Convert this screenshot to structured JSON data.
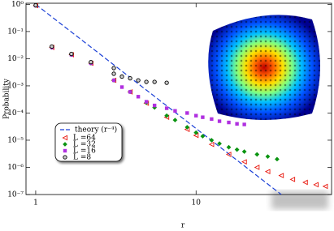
{
  "chart_data": {
    "type": "scatter",
    "xlabel": "r",
    "ylabel": "Probability",
    "xscale": "log",
    "yscale": "log",
    "legend": "lower left",
    "xlim": [
      0.87,
      70
    ],
    "ylim": [
      1e-07,
      1.1
    ],
    "xticks": [
      1,
      10
    ],
    "yticks": [
      {
        "value": 1e-07,
        "label": "10⁻⁷"
      },
      {
        "value": 1e-06,
        "label": "10⁻⁶"
      },
      {
        "value": 1e-05,
        "label": "10⁻⁵"
      },
      {
        "value": 0.0001,
        "label": "10⁻⁴"
      },
      {
        "value": 0.001,
        "label": "10⁻³"
      },
      {
        "value": 0.01,
        "label": "10⁻²"
      },
      {
        "value": 0.1,
        "label": "10⁻¹"
      },
      {
        "value": 1,
        "label": "10⁰"
      }
    ],
    "theory": {
      "name": "theory (r⁻⁴)",
      "color": "#1a3fd6",
      "x": [
        1,
        34
      ],
      "values": [
        1,
        1e-07
      ]
    },
    "series": [
      {
        "name": "L =64",
        "color": "#e8150b",
        "marker": "triangle-left",
        "x": [
          1,
          1.26,
          1.67,
          2.21,
          3.07,
          3.88,
          4.9,
          6.56,
          8.8,
          10,
          12.5,
          16,
          20,
          24,
          28,
          34,
          40,
          48,
          56,
          64
        ],
        "values": [
          0.9,
          0.026,
          0.014,
          0.0068,
          0.0016,
          0.0006,
          0.00023,
          7e-05,
          2.5e-05,
          1.5e-05,
          7e-06,
          3e-06,
          1.6e-06,
          1e-06,
          7e-07,
          5e-07,
          3.6e-07,
          2.8e-07,
          2.3e-07,
          2e-07
        ]
      },
      {
        "name": "L =32",
        "color": "#0a9410",
        "marker": "diamond",
        "x": [
          1,
          1.26,
          1.67,
          2.21,
          3.07,
          3.88,
          4.9,
          5.51,
          6.56,
          7.4,
          8.8,
          10,
          11,
          12.5,
          14,
          16,
          18,
          20,
          24,
          28,
          32
        ],
        "values": [
          0.9,
          0.026,
          0.014,
          0.0068,
          0.0016,
          0.0006,
          0.00024,
          0.00016,
          8e-05,
          5.5e-05,
          3e-05,
          1.9e-05,
          1.4e-05,
          1e-05,
          7.5e-06,
          5.5e-06,
          4.5e-06,
          3.8e-06,
          3e-06,
          2.5e-06,
          2e-06
        ]
      },
      {
        "name": "L =16",
        "color": "#b030e0",
        "marker": "square",
        "x": [
          1,
          1.26,
          1.67,
          2.21,
          3.07,
          3.45,
          3.88,
          4.36,
          4.9,
          5.51,
          6.56,
          7.4,
          8.8,
          10,
          11,
          12.5,
          14,
          16,
          18,
          20
        ],
        "values": [
          0.9,
          0.026,
          0.014,
          0.0068,
          0.0016,
          0.0009,
          0.0006,
          0.0004,
          0.00026,
          0.00019,
          0.00015,
          0.00012,
          0.0001,
          8e-05,
          7e-05,
          6e-05,
          5e-05,
          4.5e-05,
          4e-05,
          3.8e-05
        ]
      },
      {
        "name": "L =8",
        "color": "#000000",
        "marker": "circle",
        "x": [
          1,
          1.26,
          1.67,
          2.21,
          3.07,
          3.07,
          3.45,
          3.88,
          4.36,
          4.9,
          5.51,
          6.56
        ],
        "values": [
          0.93,
          0.028,
          0.015,
          0.0075,
          0.0045,
          0.0028,
          0.0022,
          0.0019,
          0.0016,
          0.0014,
          0.0014,
          0.0013
        ]
      }
    ]
  }
}
